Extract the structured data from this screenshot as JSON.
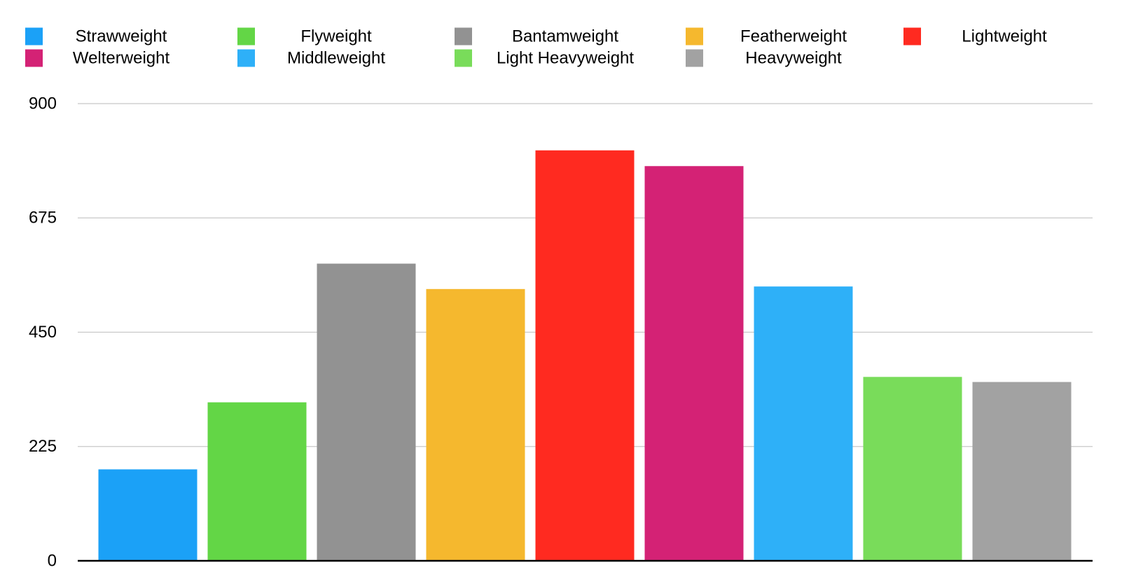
{
  "chart_data": {
    "type": "bar",
    "title": "",
    "xlabel": "",
    "ylabel": "",
    "ylim": [
      0,
      900
    ],
    "yticks": [
      0,
      225,
      450,
      675,
      900
    ],
    "grid": true,
    "legend_position": "top",
    "categories": [
      "Strawweight",
      "Flyweight",
      "Bantamweight",
      "Featherweight",
      "Lightweight",
      "Welterweight",
      "Middleweight",
      "Light Heavyweight",
      "Heavyweight"
    ],
    "values": [
      180,
      312,
      585,
      535,
      808,
      777,
      540,
      362,
      352
    ],
    "colors": [
      "#1BA1F7",
      "#63D646",
      "#929292",
      "#F5B82E",
      "#FF2A20",
      "#D42275",
      "#2EB0F8",
      "#79DC5A",
      "#A2A2A2"
    ]
  }
}
